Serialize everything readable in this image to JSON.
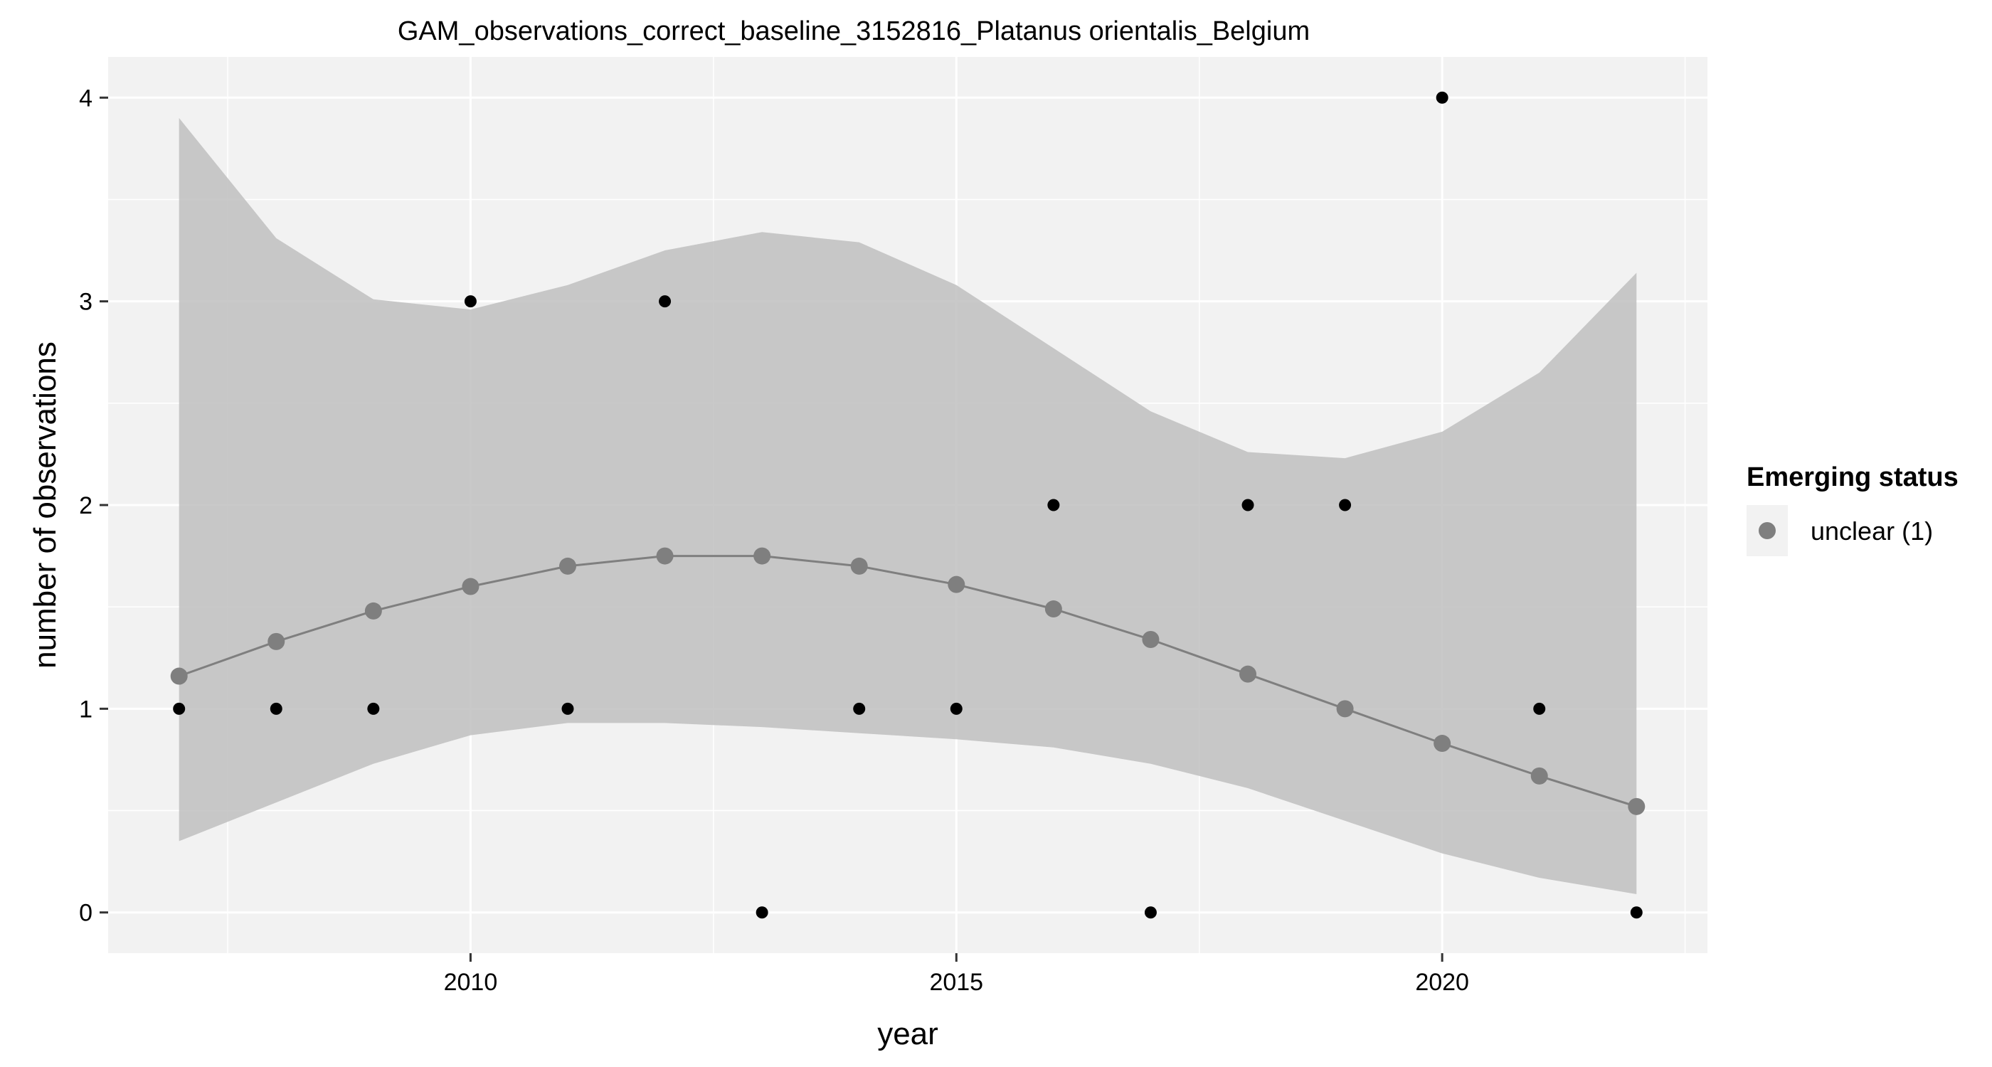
{
  "chart_data": {
    "type": "scatter",
    "title": "GAM_observations_correct_baseline_3152816_Platanus orientalis_Belgium",
    "xlabel": "year",
    "ylabel": "number of observations",
    "xlim": [
      2006.27,
      2022.73
    ],
    "ylim": [
      -0.2,
      4.2
    ],
    "x_ticks": [
      2010,
      2015,
      2020
    ],
    "y_ticks": [
      0,
      1,
      2,
      3,
      4
    ],
    "grid": true,
    "legend": {
      "title": "Emerging status",
      "position": "right",
      "entries": [
        {
          "label": "unclear (1)",
          "color": "#7f7f7f"
        }
      ]
    },
    "observed": {
      "x": [
        2007,
        2008,
        2009,
        2010,
        2011,
        2012,
        2013,
        2014,
        2015,
        2016,
        2017,
        2018,
        2019,
        2020,
        2021,
        2022
      ],
      "y": [
        1,
        1,
        1,
        3,
        1,
        3,
        0,
        1,
        1,
        2,
        0,
        2,
        2,
        4,
        1,
        0
      ],
      "color": "#000000"
    },
    "series": [
      {
        "name": "unclear (1)",
        "x": [
          2007,
          2008,
          2009,
          2010,
          2011,
          2012,
          2013,
          2014,
          2015,
          2016,
          2017,
          2018,
          2019,
          2020,
          2021,
          2022
        ],
        "fit": [
          1.16,
          1.33,
          1.48,
          1.6,
          1.7,
          1.75,
          1.75,
          1.7,
          1.61,
          1.49,
          1.34,
          1.17,
          1.0,
          0.83,
          0.67,
          0.52
        ],
        "lower": [
          0.35,
          0.54,
          0.73,
          0.87,
          0.93,
          0.93,
          0.91,
          0.88,
          0.85,
          0.81,
          0.73,
          0.61,
          0.45,
          0.29,
          0.17,
          0.09
        ],
        "upper": [
          3.9,
          3.31,
          3.01,
          2.96,
          3.08,
          3.25,
          3.34,
          3.29,
          3.08,
          2.77,
          2.46,
          2.26,
          2.23,
          2.36,
          2.65,
          3.14
        ],
        "color": "#7f7f7f",
        "ribbon_color": "#bdbdbd"
      }
    ]
  }
}
